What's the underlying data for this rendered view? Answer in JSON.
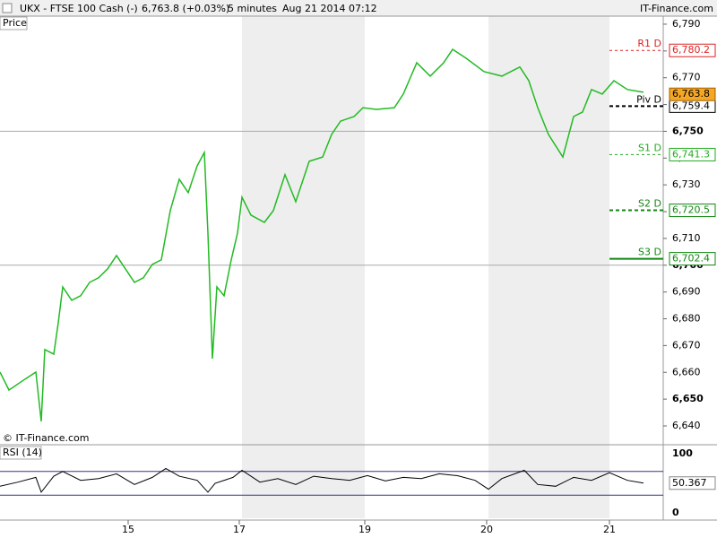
{
  "chart_data": {
    "type": "line",
    "symbol": "UKX - FTSE 100 Cash (-)",
    "quote": "6,763.8 (+0.03%)",
    "interval": "5 minutes",
    "timestamp": "Aug 21 2014 07:12",
    "brand": "IT-Finance.com",
    "panel_label": "Price",
    "copyright": "© IT-Finance.com",
    "xlim": [
      0,
      740
    ],
    "xticks": [
      {
        "value": 143,
        "label": "15"
      },
      {
        "value": 267,
        "label": "17"
      },
      {
        "value": 407,
        "label": "19"
      },
      {
        "value": 543,
        "label": "20"
      },
      {
        "value": 680,
        "label": "21"
      }
    ],
    "ylim": [
      6633.3,
      6793
    ],
    "yticks": [
      {
        "value": 6640,
        "label": "6,640"
      },
      {
        "value": 6650,
        "label": "6,650"
      },
      {
        "value": 6660,
        "label": "6,660"
      },
      {
        "value": 6670,
        "label": "6,670"
      },
      {
        "value": 6680,
        "label": "6,680"
      },
      {
        "value": 6690,
        "label": "6,690"
      },
      {
        "value": 6700,
        "label": "6,700"
      },
      {
        "value": 6710,
        "label": "6,710"
      },
      {
        "value": 6720,
        "label": "6,720"
      },
      {
        "value": 6730,
        "label": "6,730"
      },
      {
        "value": 6740,
        "label": "6,740"
      },
      {
        "value": 6750,
        "label": "6,750"
      },
      {
        "value": 6760,
        "label": "6,760"
      },
      {
        "value": 6770,
        "label": "6,770"
      },
      {
        "value": 6780,
        "label": "6,780"
      },
      {
        "value": 6790,
        "label": "6,790"
      }
    ],
    "grid_values": [
      6700,
      6750
    ],
    "series": [
      {
        "name": "UKX",
        "color": "#22bb22",
        "x": [
          0,
          10,
          25,
          40,
          46,
          50,
          60,
          65,
          70,
          80,
          90,
          100,
          110,
          120,
          130,
          140,
          150,
          160,
          170,
          180,
          190,
          200,
          210,
          220,
          228,
          232,
          237,
          242,
          250,
          258,
          265,
          270,
          280,
          295,
          305,
          318,
          330,
          345,
          360,
          370,
          380,
          395,
          405,
          420,
          440,
          450,
          465,
          480,
          495,
          505,
          520,
          540,
          560,
          580,
          590,
          600,
          612,
          628,
          640,
          650,
          660,
          672,
          685,
          700,
          718
        ],
        "values": [
          6660.1,
          6653.4,
          6656.8,
          6660.1,
          6641.7,
          6668.5,
          6666.8,
          6678.5,
          6691.9,
          6686.9,
          6688.6,
          6693.6,
          6695.3,
          6698.6,
          6703.6,
          6698.6,
          6693.6,
          6695.3,
          6700.3,
          6702.0,
          6720.4,
          6732.1,
          6727.1,
          6737.1,
          6742.1,
          6712.0,
          6665.1,
          6691.9,
          6688.6,
          6702.0,
          6712.0,
          6725.4,
          6718.7,
          6716.0,
          6720.4,
          6733.8,
          6723.7,
          6738.8,
          6740.4,
          6748.8,
          6753.8,
          6755.5,
          6758.8,
          6758.2,
          6758.8,
          6763.9,
          6775.6,
          6770.6,
          6775.6,
          6780.6,
          6777.3,
          6772.3,
          6770.6,
          6774.0,
          6768.9,
          6758.8,
          6748.8,
          6740.4,
          6755.5,
          6757.2,
          6765.6,
          6763.9,
          6768.9,
          6765.6,
          6764.6
        ]
      }
    ],
    "last_price": {
      "value": 6763.8,
      "label": "6,763.8",
      "color": "#f5a623"
    },
    "levels": [
      {
        "name": "R1 D",
        "value": 6780.2,
        "label": "6,780.2",
        "color": "#dd2222",
        "dash": "3,3",
        "width": 1
      },
      {
        "name": "Piv D",
        "value": 6759.4,
        "label": "6,759.4",
        "color": "#000000",
        "dash": "4,3",
        "width": 2
      },
      {
        "name": "S1 D",
        "value": 6741.3,
        "label": "6,741.3",
        "color": "#22aa22",
        "dash": "3,3",
        "width": 1
      },
      {
        "name": "S2 D",
        "value": 6720.5,
        "label": "6,720.5",
        "color": "#118811",
        "dash": "4,3",
        "width": 2
      },
      {
        "name": "S3 D",
        "value": 6702.4,
        "label": "6,702.4",
        "color": "#118811",
        "dash": "none",
        "width": 2
      }
    ],
    "rsi": {
      "name": "RSI (14)",
      "color": "#000000",
      "ylim": [
        -12.1,
        112.1
      ],
      "yticks": [
        0,
        100
      ],
      "bands": [
        70,
        30
      ],
      "band_color": "#333388",
      "last": {
        "value": 50.367,
        "label": "50.367"
      },
      "x": [
        0,
        20,
        40,
        46,
        60,
        70,
        90,
        110,
        130,
        150,
        170,
        185,
        200,
        220,
        232,
        240,
        260,
        270,
        290,
        310,
        330,
        350,
        370,
        390,
        410,
        430,
        450,
        470,
        490,
        510,
        530,
        545,
        560,
        585,
        600,
        620,
        640,
        660,
        680,
        700,
        718
      ],
      "values": [
        45,
        52,
        60,
        35,
        62,
        70,
        55,
        58,
        66,
        48,
        60,
        75,
        62,
        55,
        35,
        50,
        60,
        72,
        52,
        58,
        48,
        62,
        58,
        55,
        63,
        54,
        60,
        58,
        66,
        63,
        55,
        40,
        58,
        72,
        48,
        45,
        60,
        55,
        68,
        55,
        50.367
      ]
    }
  }
}
